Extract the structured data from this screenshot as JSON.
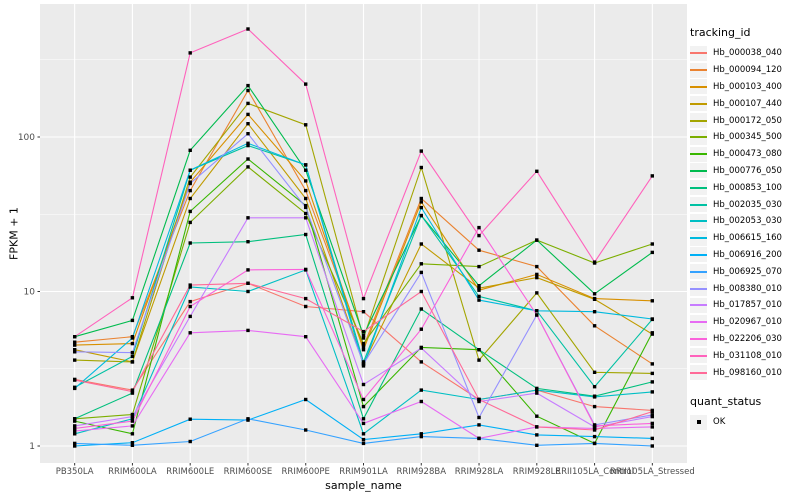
{
  "chart_data": {
    "type": "line",
    "title": "",
    "xlabel": "sample_name",
    "ylabel": "FPKM + 1",
    "y_scale": "log10",
    "y_ticks": [
      "1",
      "10",
      "100"
    ],
    "y_tick_values": [
      1,
      10,
      100
    ],
    "y_minor_values": [
      3.162,
      31.62,
      316.2
    ],
    "ylim": [
      0.78,
      720
    ],
    "grid": true,
    "legend_position": "right",
    "marker": "black-square",
    "panel_bg": "#EBEBEB",
    "grid_color": "#FFFFFF",
    "axis_text_color": "#4D4D4D",
    "tick_color": "#333333",
    "point_color": "#000000",
    "categories": [
      "PB350LA",
      "RRIM600LA",
      "RRIM600LE",
      "RRIM600SE",
      "RRIM600PE",
      "RRIM901LA",
      "RRIM928BA",
      "RRIM928LA",
      "RRIM928LE",
      "RRII105LA_Control",
      "RRII105LA_Stressed"
    ],
    "series": [
      {
        "name": "Hb_000038_040",
        "color": "#F8766D",
        "values": [
          2.7,
          2.3,
          8.6,
          11.3,
          8.0,
          7.4,
          3.5,
          2.0,
          2.3,
          1.8,
          1.7
        ]
      },
      {
        "name": "Hb_000094_120",
        "color": "#EA8331",
        "values": [
          4.7,
          5.1,
          45,
          200,
          45,
          4.4,
          40,
          18.5,
          14.5,
          6.0,
          3.4
        ]
      },
      {
        "name": "Hb_000103_400",
        "color": "#D89000",
        "values": [
          4.5,
          4.6,
          51,
          140,
          52,
          4.2,
          38,
          10.2,
          12.9,
          9.0,
          8.7
        ]
      },
      {
        "name": "Hb_000107_440",
        "color": "#C09B00",
        "values": [
          4.2,
          3.5,
          40,
          122,
          40,
          3.4,
          20.3,
          10.5,
          12.3,
          8.9,
          5.3
        ]
      },
      {
        "name": "Hb_000172_050",
        "color": "#A3A500",
        "values": [
          3.6,
          3.5,
          55,
          165,
          120,
          5.0,
          63.5,
          3.6,
          9.8,
          3.0,
          2.95
        ]
      },
      {
        "name": "Hb_000345_500",
        "color": "#7CAE00",
        "values": [
          1.5,
          1.6,
          28,
          64,
          32,
          4.6,
          15.1,
          14.5,
          21.5,
          15.3,
          20.3
        ]
      },
      {
        "name": "Hb_000473_080",
        "color": "#39B600",
        "values": [
          1.45,
          1.2,
          33,
          72,
          36,
          1.8,
          4.35,
          4.2,
          1.56,
          1.04,
          5.4
        ]
      },
      {
        "name": "Hb_000776_050",
        "color": "#00BB4E",
        "values": [
          5.1,
          6.5,
          82,
          215,
          61,
          5.2,
          31,
          10.9,
          21.5,
          9.66,
          17.9
        ]
      },
      {
        "name": "Hb_000853_100",
        "color": "#00BF7D",
        "values": [
          1.5,
          2.2,
          20.6,
          21,
          23.4,
          1.5,
          7.7,
          4.2,
          2.36,
          2.1,
          2.6
        ]
      },
      {
        "name": "Hb_002035_030",
        "color": "#00C1A3",
        "values": [
          2.4,
          3.8,
          61,
          88,
          66,
          3.5,
          31,
          9.3,
          7.5,
          2.42,
          6.6
        ]
      },
      {
        "name": "Hb_002053_030",
        "color": "#00BFC4",
        "values": [
          1.2,
          1.5,
          10.7,
          10.0,
          13.8,
          1.2,
          2.3,
          2.0,
          2.3,
          2.08,
          2.24
        ]
      },
      {
        "name": "Hb_006615_160",
        "color": "#00BADE",
        "values": [
          2.36,
          5.0,
          61,
          91,
          66,
          3.3,
          34.9,
          8.8,
          7.5,
          7.4,
          6.64
        ]
      },
      {
        "name": "Hb_006916_200",
        "color": "#00B0F6",
        "values": [
          1.0,
          1.05,
          1.49,
          1.47,
          2.0,
          1.1,
          1.2,
          1.37,
          1.18,
          1.15,
          1.12
        ]
      },
      {
        "name": "Hb_006925_070",
        "color": "#35A2FF",
        "values": [
          1.04,
          1.01,
          1.07,
          1.5,
          1.27,
          1.04,
          1.15,
          1.12,
          1.01,
          1.04,
          1.0
        ]
      },
      {
        "name": "Hb_008380_010",
        "color": "#9590FF",
        "values": [
          4.07,
          4.02,
          50,
          105,
          35,
          3.4,
          13.3,
          1.53,
          7.05,
          1.37,
          1.59
        ]
      },
      {
        "name": "Hb_017857_010",
        "color": "#C77CFF",
        "values": [
          1.35,
          1.55,
          6.9,
          30,
          30,
          2.5,
          4.3,
          1.94,
          2.2,
          1.33,
          1.55
        ]
      },
      {
        "name": "Hb_020967_010",
        "color": "#E76BF3",
        "values": [
          1.25,
          1.35,
          5.4,
          5.6,
          5.1,
          1.4,
          1.94,
          1.12,
          1.33,
          1.3,
          1.33
        ]
      },
      {
        "name": "Hb_022206_030",
        "color": "#FA62DB",
        "values": [
          1.3,
          1.45,
          8.0,
          13.8,
          13.9,
          2.0,
          5.7,
          25.9,
          7.05,
          1.35,
          1.4
        ]
      },
      {
        "name": "Hb_031108_010",
        "color": "#FF62BC",
        "values": [
          5.1,
          9.1,
          350,
          500,
          220,
          9.0,
          81,
          23,
          60,
          15.5,
          56
        ]
      },
      {
        "name": "Hb_098160_010",
        "color": "#FF6A98",
        "values": [
          2.67,
          2.25,
          11,
          11.3,
          9.0,
          5.5,
          10,
          2.0,
          1.33,
          1.27,
          1.67
        ]
      }
    ],
    "legend": {
      "color_title": "tracking_id",
      "shape_title": "quant_status",
      "shape_items": [
        {
          "label": "OK",
          "marker": "black-square"
        }
      ]
    }
  }
}
